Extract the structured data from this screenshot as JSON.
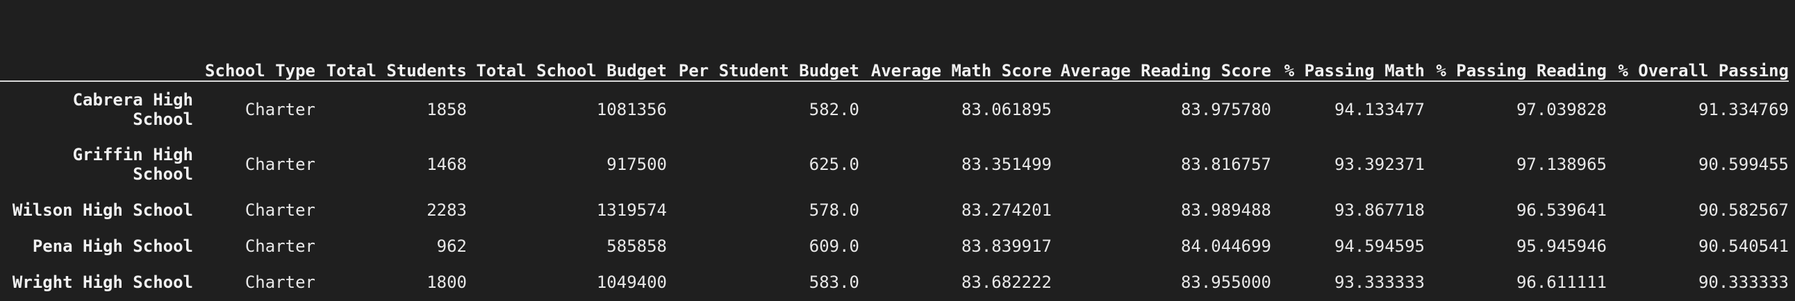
{
  "table": {
    "columns": [
      "School Type",
      "Total Students",
      "Total School Budget",
      "Per Student Budget",
      "Average Math Score",
      "Average Reading Score",
      "% Passing Math",
      "% Passing Reading",
      "% Overall Passing"
    ],
    "rows": [
      {
        "index": "Cabrera High School",
        "cells": [
          "Charter",
          "1858",
          "1081356",
          "582.0",
          "83.061895",
          "83.975780",
          "94.133477",
          "97.039828",
          "91.334769"
        ]
      },
      {
        "index": "Griffin High School",
        "cells": [
          "Charter",
          "1468",
          "917500",
          "625.0",
          "83.351499",
          "83.816757",
          "93.392371",
          "97.138965",
          "90.599455"
        ]
      },
      {
        "index": "Wilson High School",
        "cells": [
          "Charter",
          "2283",
          "1319574",
          "578.0",
          "83.274201",
          "83.989488",
          "93.867718",
          "96.539641",
          "90.582567"
        ]
      },
      {
        "index": "Pena High School",
        "cells": [
          "Charter",
          "962",
          "585858",
          "609.0",
          "83.839917",
          "84.044699",
          "94.594595",
          "95.945946",
          "90.540541"
        ]
      },
      {
        "index": "Wright High School",
        "cells": [
          "Charter",
          "1800",
          "1049400",
          "583.0",
          "83.682222",
          "83.955000",
          "93.333333",
          "96.611111",
          "90.333333"
        ]
      }
    ]
  }
}
